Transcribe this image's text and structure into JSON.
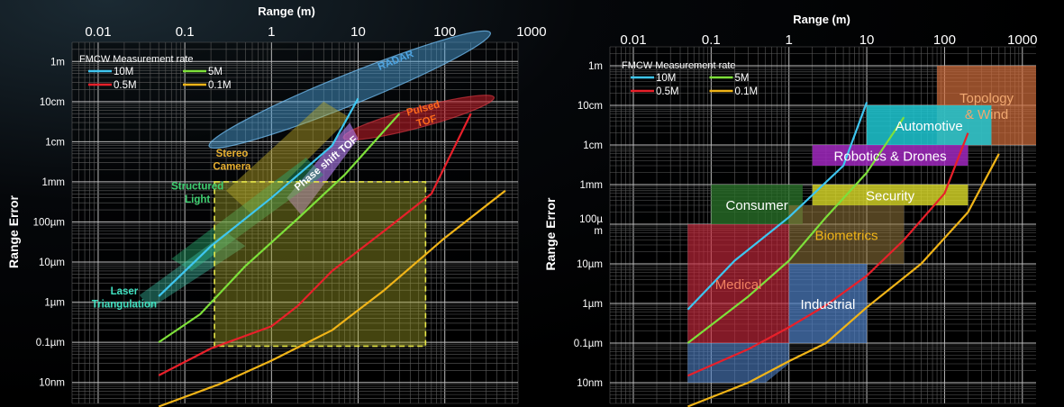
{
  "chart_data": [
    {
      "type": "line",
      "xlabel": "Range (m)",
      "ylabel": "Range Error",
      "x_scale": "log",
      "y_scale": "log",
      "xlim": [
        0.005,
        700
      ],
      "ylim_m": [
        3e-09,
        3
      ],
      "x_ticks": [
        {
          "v": 0.01,
          "label": "0.01"
        },
        {
          "v": 0.1,
          "label": "0.1"
        },
        {
          "v": 1,
          "label": "1"
        },
        {
          "v": 10,
          "label": "10"
        },
        {
          "v": 100,
          "label": "100"
        },
        {
          "v": 1000,
          "label": "1000"
        }
      ],
      "y_ticks": [
        {
          "v": 1,
          "label": "1m"
        },
        {
          "v": 0.1,
          "label": "10cm"
        },
        {
          "v": 0.01,
          "label": "1cm"
        },
        {
          "v": 0.001,
          "label": "1mm"
        },
        {
          "v": 0.0001,
          "label": "100µm"
        },
        {
          "v": 1e-05,
          "label": "10µm"
        },
        {
          "v": 1e-06,
          "label": "1µm"
        },
        {
          "v": 1e-07,
          "label": "0.1µm"
        },
        {
          "v": 1e-08,
          "label": "10nm"
        }
      ],
      "legend_title": "FMCW Measurement rate",
      "grid": true,
      "series": [
        {
          "name": "10M",
          "color": "#3ec6f0",
          "x": [
            0.05,
            0.2,
            1,
            5,
            10
          ],
          "y": [
            1.4e-06,
            2.5e-05,
            0.0004,
            0.008,
            0.12
          ]
        },
        {
          "name": "5M",
          "color": "#7ee03a",
          "x": [
            0.05,
            0.15,
            0.5,
            2,
            7,
            30
          ],
          "y": [
            1e-07,
            5e-07,
            8e-06,
            0.00012,
            0.0015,
            0.05
          ]
        },
        {
          "name": "0.5M",
          "color": "#e8202a",
          "x": [
            0.05,
            0.2,
            1,
            2,
            5,
            20,
            70,
            200
          ],
          "y": [
            1.5e-08,
            7e-08,
            2.5e-07,
            8e-07,
            6e-06,
            6e-05,
            0.0005,
            0.05
          ]
        },
        {
          "name": "0.1M",
          "color": "#f0b418",
          "x": [
            0.05,
            0.25,
            1,
            5,
            20,
            100,
            500
          ],
          "y": [
            2.5e-09,
            9e-09,
            3.5e-08,
            2e-07,
            2e-06,
            4e-05,
            0.0006
          ]
        }
      ],
      "regions": [
        {
          "label": "RADAR",
          "label_color": "#4da3e0",
          "fill": "rgba(80,170,230,0.45)",
          "stroke": "rgba(120,200,255,0.7)",
          "shape": "ellipse",
          "cx": 8,
          "cy": 0.2,
          "rx_dec": 1.75,
          "ry_dec": 0.85,
          "rot": -22,
          "lx": 28,
          "ly": 0.9
        },
        {
          "label": "Pulsed\nTOF",
          "label_color": "#ff6a1c",
          "fill": "rgba(200,30,40,0.55)",
          "stroke": "rgba(230,60,70,0.6)",
          "shape": "ellipse",
          "cx": 50,
          "cy": 0.04,
          "rx_dec": 0.9,
          "ry_dec": 0.55,
          "rot": -15,
          "lx": 60,
          "ly": 0.04
        },
        {
          "label": "Stereo\nCamera",
          "label_color": "#e8b030",
          "fill": "rgba(190,170,40,0.45)",
          "stroke": "none",
          "shape": "poly",
          "pts": [
            [
              0.3,
              0.0006
            ],
            [
              4,
              0.1
            ],
            [
              8,
              0.04
            ],
            [
              0.6,
              0.00015
            ]
          ],
          "lx": 0.35,
          "ly": 0.003
        },
        {
          "label": "Phase shift TOF",
          "label_color": "#ffffff",
          "fill": "rgba(170,120,230,0.65)",
          "stroke": "none",
          "shape": "poly",
          "pts": [
            [
              1.5,
              0.0004
            ],
            [
              8,
              0.03
            ],
            [
              10,
              0.012
            ],
            [
              2.2,
              0.00015
            ]
          ],
          "lx": 4.5,
          "ly": 0.0025,
          "rot": -40
        },
        {
          "label": "Structured\nLight",
          "label_color": "#3ecf70",
          "fill": "rgba(40,170,110,0.45)",
          "stroke": "none",
          "shape": "poly",
          "pts": [
            [
              0.07,
              1.2e-05
            ],
            [
              2.5,
              0.004
            ],
            [
              4,
              0.0015
            ],
            [
              0.12,
              6e-06
            ]
          ],
          "lx": 0.14,
          "ly": 0.00045
        },
        {
          "label": "Laser\nTriangulation",
          "label_color": "#40e0c0",
          "fill": "rgba(60,200,170,0.4)",
          "stroke": "none",
          "shape": "poly",
          "pts": [
            [
              0.03,
              1.5e-06
            ],
            [
              0.3,
              5.5e-05
            ],
            [
              0.5,
              2.5e-05
            ],
            [
              0.04,
              7e-07
            ]
          ],
          "lx": 0.02,
          "ly": 1.1e-06
        },
        {
          "label": "",
          "label_color": "#e8e84a",
          "fill": "rgba(170,170,40,0.4)",
          "stroke": "#e8e84a",
          "dash": true,
          "shape": "rect",
          "x0": 0.22,
          "x1": 60,
          "y0": 8e-08,
          "y1": 0.001
        }
      ]
    },
    {
      "type": "line",
      "xlabel": "Range (m)",
      "ylabel": "Range Error",
      "x_scale": "log",
      "y_scale": "log",
      "xlim": [
        0.005,
        1500
      ],
      "ylim_m": [
        3e-09,
        3
      ],
      "x_ticks": [
        {
          "v": 0.01,
          "label": "0.01"
        },
        {
          "v": 0.1,
          "label": "0.1"
        },
        {
          "v": 1,
          "label": "1"
        },
        {
          "v": 10,
          "label": "10"
        },
        {
          "v": 100,
          "label": "100"
        },
        {
          "v": 1000,
          "label": "1000"
        }
      ],
      "y_ticks": [
        {
          "v": 1,
          "label": "1m"
        },
        {
          "v": 0.1,
          "label": "10cm"
        },
        {
          "v": 0.01,
          "label": "1cm"
        },
        {
          "v": 0.001,
          "label": "1mm"
        },
        {
          "v": 0.0001,
          "label": "100µ\nm"
        },
        {
          "v": 1e-05,
          "label": "10µm"
        },
        {
          "v": 1e-06,
          "label": "1µm"
        },
        {
          "v": 1e-07,
          "label": "0.1µm"
        },
        {
          "v": 1e-08,
          "label": "10nm"
        }
      ],
      "legend_title": "FMCW Measurement rate",
      "grid": true,
      "series": [
        {
          "name": "10M",
          "color": "#3ec6f0",
          "x": [
            0.05,
            0.2,
            1,
            5,
            10
          ],
          "y": [
            7e-07,
            1.2e-05,
            0.00015,
            0.003,
            0.12
          ]
        },
        {
          "name": "5M",
          "color": "#7ee03a",
          "x": [
            0.05,
            0.3,
            1,
            3,
            10,
            30
          ],
          "y": [
            1e-07,
            1.5e-06,
            1.2e-05,
            0.00015,
            0.002,
            0.05
          ]
        },
        {
          "name": "0.5M",
          "color": "#e8202a",
          "x": [
            0.05,
            0.3,
            1,
            3,
            10,
            30,
            100,
            200
          ],
          "y": [
            1.5e-08,
            7e-08,
            2.5e-07,
            9e-07,
            5e-06,
            4e-05,
            0.0006,
            0.02
          ]
        },
        {
          "name": "0.1M",
          "color": "#f0b418",
          "x": [
            0.05,
            0.3,
            1,
            3,
            10,
            50,
            200,
            500
          ],
          "y": [
            2.5e-09,
            1e-08,
            3.5e-08,
            1e-07,
            8e-07,
            1e-05,
            0.0002,
            0.006
          ]
        }
      ],
      "regions": [
        {
          "label": "Topology\n& Wind",
          "label_color": "#f0a870",
          "fill": "rgba(210,110,60,0.7)",
          "shape": "rect",
          "x0": 80,
          "x1": 1500,
          "y0": 0.01,
          "y1": 1
        },
        {
          "label": "Automotive",
          "label_color": "#ffffff",
          "fill": "rgba(30,200,210,0.85)",
          "shape": "rect",
          "x0": 10,
          "x1": 400,
          "y0": 0.01,
          "y1": 0.1
        },
        {
          "label": "Robotics & Drones",
          "label_color": "#ffffff",
          "fill": "rgba(160,40,190,0.85)",
          "shape": "rect",
          "x0": 2,
          "x1": 200,
          "y0": 0.003,
          "y1": 0.01
        },
        {
          "label": "Security",
          "label_color": "#ffffff",
          "fill": "rgba(220,220,40,0.8)",
          "shape": "rect",
          "x0": 2,
          "x1": 200,
          "y0": 0.0003,
          "y1": 0.001
        },
        {
          "label": "Consumer",
          "label_color": "#ffffff",
          "fill": "rgba(40,110,40,0.8)",
          "shape": "rect",
          "x0": 0.1,
          "x1": 1.5,
          "y0": 0.0001,
          "y1": 0.001
        },
        {
          "label": "Biometrics",
          "label_color": "#f0b418",
          "fill": "rgba(150,120,60,0.55)",
          "shape": "rect",
          "x0": 1,
          "x1": 30,
          "y0": 1e-05,
          "y1": 0.0003
        },
        {
          "label": "Medical",
          "label_color": "#f08060",
          "fill": "rgba(200,40,60,0.65)",
          "shape": "rect",
          "x0": 0.05,
          "x1": 1,
          "y0": 1e-07,
          "y1": 0.0001
        },
        {
          "label": "Industrial",
          "label_color": "#ffffff",
          "fill": "rgba(80,130,200,0.7)",
          "shape": "rect",
          "x0": 1,
          "x1": 10,
          "y0": 1e-07,
          "y1": 1e-05
        },
        {
          "label": "",
          "label_color": "#ffffff",
          "fill": "rgba(80,130,200,0.6)",
          "shape": "poly",
          "pts": [
            [
              0.05,
              1e-08
            ],
            [
              0.5,
              1e-08
            ],
            [
              1,
              3e-08
            ],
            [
              1,
              1e-07
            ],
            [
              0.05,
              1e-07
            ]
          ],
          "lx": 0.2,
          "ly": 3e-08
        }
      ]
    }
  ]
}
